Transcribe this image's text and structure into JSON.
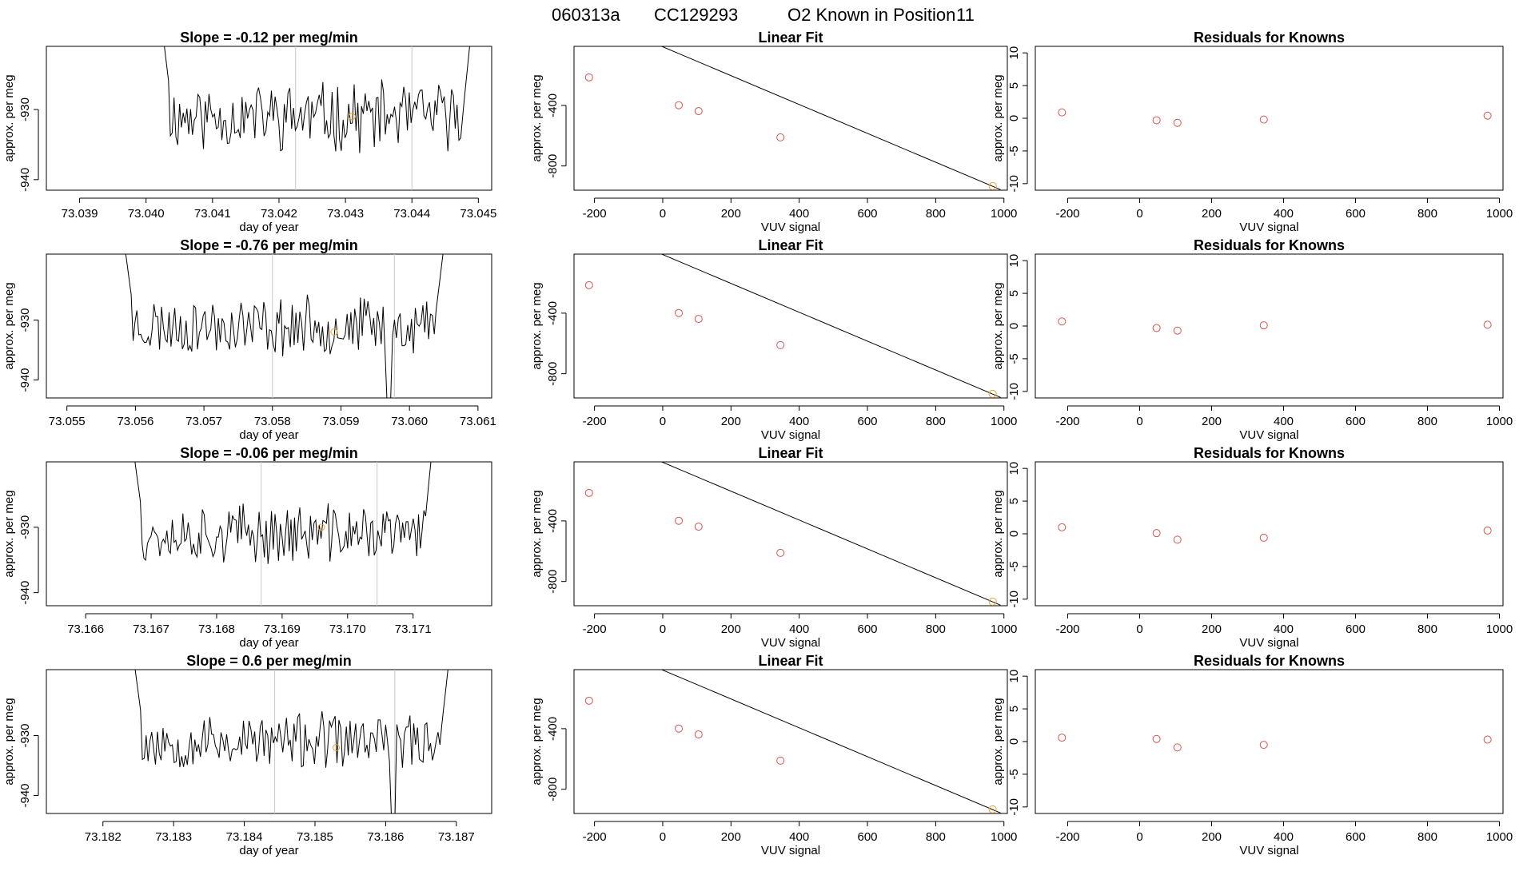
{
  "header": {
    "run_id": "060313a",
    "cylinder": "CC129293",
    "known_label": "O2 Known in Position",
    "position": "11"
  },
  "colors": {
    "line": "#000000",
    "known_points": "#d9534f",
    "highlight_point": "#f0a030",
    "vline": "#c8c8c8"
  },
  "chart_data": [
    {
      "type": "line",
      "panel": "timeseries",
      "title": "Slope =  -0.12  per meg/min",
      "xlabel": "day of year",
      "ylabel": "approx. per meg",
      "xlim": [
        73.0385,
        73.0452
      ],
      "ylim": [
        -941.5,
        -921
      ],
      "xticks": [
        "73.039",
        "73.040",
        "73.041",
        "73.042",
        "73.043",
        "73.044",
        "73.045"
      ],
      "yticks": [
        "-930",
        "-940"
      ],
      "vlines": [
        73.04225,
        73.044
      ],
      "highlight": {
        "x": 73.0431,
        "y": -931
      },
      "series": [
        {
          "x": [
            73.0402,
            73.0449
          ],
          "start": -915,
          "end": -918,
          "baseline": -931,
          "noise": 2.6,
          "seed": 11
        }
      ]
    },
    {
      "type": "scatter",
      "panel": "fit",
      "title": "Linear Fit",
      "xlabel": "VUV signal",
      "ylabel": "approx. per meg",
      "xlim": [
        -260,
        1010
      ],
      "ylim": [
        -960,
        -10
      ],
      "xticks": [
        "-200",
        "0",
        "200",
        "400",
        "600",
        "800",
        "1000"
      ],
      "yticks": [
        "-400",
        "-800"
      ],
      "fit": {
        "slope": -0.953,
        "intercept": -13
      },
      "points": [
        {
          "x": -216,
          "y": -215
        },
        {
          "x": 47,
          "y": -399
        },
        {
          "x": 105,
          "y": -438
        },
        {
          "x": 345,
          "y": -611
        },
        {
          "x": 967,
          "y": -933
        }
      ]
    },
    {
      "type": "scatter",
      "panel": "residuals",
      "title": "Residuals for Knowns",
      "xlabel": "VUV signal",
      "ylabel": "approx. per meg",
      "xlim": [
        -290,
        1010
      ],
      "ylim": [
        -11,
        11
      ],
      "xticks": [
        "-200",
        "0",
        "200",
        "400",
        "600",
        "800",
        "1000"
      ],
      "yticks": [
        "10",
        "5",
        "0",
        "-5",
        "-10"
      ],
      "points": [
        {
          "x": -216,
          "y": 0.9
        },
        {
          "x": 47,
          "y": -0.3
        },
        {
          "x": 105,
          "y": -0.7
        },
        {
          "x": 345,
          "y": -0.2
        },
        {
          "x": 967,
          "y": 0.4
        }
      ]
    },
    {
      "type": "line",
      "panel": "timeseries",
      "title": "Slope =  -0.76  per meg/min",
      "xlabel": "day of year",
      "ylabel": "approx. per meg",
      "xlim": [
        73.0547,
        73.0612
      ],
      "ylim": [
        -943,
        -919
      ],
      "xticks": [
        "73.055",
        "73.056",
        "73.057",
        "73.058",
        "73.059",
        "73.060",
        "73.061"
      ],
      "yticks": [
        "-930",
        "-940"
      ],
      "vlines": [
        73.058,
        73.05978
      ],
      "highlight": {
        "x": 73.0589,
        "y": -932
      },
      "series": [
        {
          "x": [
            73.0558,
            73.0605
          ],
          "start": -914,
          "end": -918,
          "baseline": -931,
          "noise": 2.6,
          "seed": 23,
          "dip": {
            "x": 73.0597,
            "y": -943
          }
        }
      ]
    },
    {
      "type": "scatter",
      "panel": "fit",
      "title": "Linear Fit",
      "xlabel": "VUV signal",
      "ylabel": "approx. per meg",
      "xlim": [
        -260,
        1010
      ],
      "ylim": [
        -960,
        -10
      ],
      "xticks": [
        "-200",
        "0",
        "200",
        "400",
        "600",
        "800",
        "1000"
      ],
      "yticks": [
        "-400",
        "-800"
      ],
      "fit": {
        "slope": -0.953,
        "intercept": -13
      },
      "points": [
        {
          "x": -216,
          "y": -215
        },
        {
          "x": 47,
          "y": -399
        },
        {
          "x": 105,
          "y": -438
        },
        {
          "x": 345,
          "y": -611
        },
        {
          "x": 967,
          "y": -933
        }
      ]
    },
    {
      "type": "scatter",
      "panel": "residuals",
      "title": "Residuals for Knowns",
      "xlabel": "VUV signal",
      "ylabel": "approx. per meg",
      "xlim": [
        -290,
        1010
      ],
      "ylim": [
        -11,
        11
      ],
      "xticks": [
        "-200",
        "0",
        "200",
        "400",
        "600",
        "800",
        "1000"
      ],
      "yticks": [
        "10",
        "5",
        "0",
        "-5",
        "-10"
      ],
      "points": [
        {
          "x": -216,
          "y": 0.7
        },
        {
          "x": 47,
          "y": -0.3
        },
        {
          "x": 105,
          "y": -0.7
        },
        {
          "x": 345,
          "y": 0.1
        },
        {
          "x": 967,
          "y": 0.2
        }
      ]
    },
    {
      "type": "line",
      "panel": "timeseries",
      "title": "Slope =  -0.06  per meg/min",
      "xlabel": "day of year",
      "ylabel": "approx. per meg",
      "xlim": [
        73.1654,
        73.1722
      ],
      "ylim": [
        -942,
        -920
      ],
      "xticks": [
        "73.166",
        "73.167",
        "73.168",
        "73.169",
        "73.170",
        "73.171"
      ],
      "yticks": [
        "-930",
        "-940"
      ],
      "vlines": [
        73.16868,
        73.17045
      ],
      "highlight": {
        "x": 73.1696,
        "y": -930
      },
      "series": [
        {
          "x": [
            73.1667,
            73.1713
          ],
          "start": -916,
          "end": -917,
          "baseline": -931,
          "noise": 2.4,
          "seed": 37
        }
      ]
    },
    {
      "type": "scatter",
      "panel": "fit",
      "title": "Linear Fit",
      "xlabel": "VUV signal",
      "ylabel": "approx. per meg",
      "xlim": [
        -260,
        1010
      ],
      "ylim": [
        -960,
        -10
      ],
      "xticks": [
        "-200",
        "0",
        "200",
        "400",
        "600",
        "800",
        "1000"
      ],
      "yticks": [
        "-400",
        "-800"
      ],
      "fit": {
        "slope": -0.953,
        "intercept": -13
      },
      "points": [
        {
          "x": -216,
          "y": -215
        },
        {
          "x": 47,
          "y": -399
        },
        {
          "x": 105,
          "y": -438
        },
        {
          "x": 345,
          "y": -611
        },
        {
          "x": 967,
          "y": -933
        }
      ]
    },
    {
      "type": "scatter",
      "panel": "residuals",
      "title": "Residuals for Knowns",
      "xlabel": "VUV signal",
      "ylabel": "approx. per meg",
      "xlim": [
        -290,
        1010
      ],
      "ylim": [
        -11,
        11
      ],
      "xticks": [
        "-200",
        "0",
        "200",
        "400",
        "600",
        "800",
        "1000"
      ],
      "yticks": [
        "10",
        "5",
        "0",
        "-5",
        "-10"
      ],
      "points": [
        {
          "x": -216,
          "y": 1.0
        },
        {
          "x": 47,
          "y": 0.1
        },
        {
          "x": 105,
          "y": -0.9
        },
        {
          "x": 345,
          "y": -0.6
        },
        {
          "x": 967,
          "y": 0.5
        }
      ]
    },
    {
      "type": "line",
      "panel": "timeseries",
      "title": "Slope =  0.6  per meg/min",
      "xlabel": "day of year",
      "ylabel": "approx. per meg",
      "xlim": [
        73.1812,
        73.1875
      ],
      "ylim": [
        -943,
        -919
      ],
      "xticks": [
        "73.182",
        "73.183",
        "73.184",
        "73.185",
        "73.186",
        "73.187"
      ],
      "yticks": [
        "-930",
        "-940"
      ],
      "vlines": [
        73.18443,
        73.18613
      ],
      "highlight": {
        "x": 73.1853,
        "y": -932
      },
      "series": [
        {
          "x": [
            73.1824,
            73.1869
          ],
          "start": -914,
          "end": -917,
          "baseline": -931,
          "noise": 2.5,
          "seed": 53,
          "dip": {
            "x": 73.1861,
            "y": -943
          }
        }
      ]
    },
    {
      "type": "scatter",
      "panel": "fit",
      "title": "Linear Fit",
      "xlabel": "VUV signal",
      "ylabel": "approx. per meg",
      "xlim": [
        -260,
        1010
      ],
      "ylim": [
        -960,
        -10
      ],
      "xticks": [
        "-200",
        "0",
        "200",
        "400",
        "600",
        "800",
        "1000"
      ],
      "yticks": [
        "-400",
        "-800"
      ],
      "fit": {
        "slope": -0.953,
        "intercept": -13
      },
      "points": [
        {
          "x": -216,
          "y": -215
        },
        {
          "x": 47,
          "y": -399
        },
        {
          "x": 105,
          "y": -438
        },
        {
          "x": 345,
          "y": -611
        },
        {
          "x": 967,
          "y": -933
        }
      ]
    },
    {
      "type": "scatter",
      "panel": "residuals",
      "title": "Residuals for Knowns",
      "xlabel": "VUV signal",
      "ylabel": "approx. per meg",
      "xlim": [
        -290,
        1010
      ],
      "ylim": [
        -11,
        11
      ],
      "xticks": [
        "-200",
        "0",
        "200",
        "400",
        "600",
        "800",
        "1000"
      ],
      "yticks": [
        "10",
        "5",
        "0",
        "-5",
        "-10"
      ],
      "points": [
        {
          "x": -216,
          "y": 0.6
        },
        {
          "x": 47,
          "y": 0.4
        },
        {
          "x": 105,
          "y": -0.9
        },
        {
          "x": 345,
          "y": -0.5
        },
        {
          "x": 967,
          "y": 0.3
        }
      ]
    }
  ]
}
